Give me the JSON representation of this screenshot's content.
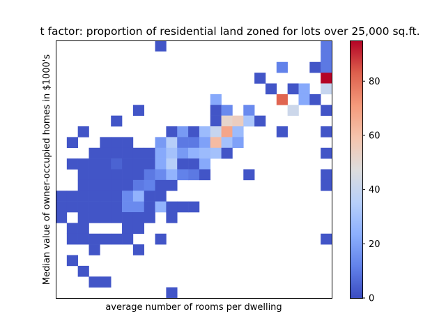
{
  "chart_data": {
    "type": "heatmap",
    "title": "t factor: proportion of residential land zoned for lots over 25,000 sq.ft.",
    "xlabel": "average number of rooms per dwelling",
    "ylabel": "Median value of owner-occupied homes in $1000's",
    "colormap": "coolwarm",
    "vmin": 0,
    "vmax": 95,
    "nx": 25,
    "ny": 24,
    "colorbar_ticks": [
      0,
      20,
      40,
      60,
      80
    ],
    "grid": false,
    "legend": "colorbar-right",
    "cells": [
      [
        9,
        23,
        2
      ],
      [
        24,
        23,
        10
      ],
      [
        24,
        22,
        10
      ],
      [
        20,
        21,
        12
      ],
      [
        23,
        21,
        2
      ],
      [
        24,
        21,
        10
      ],
      [
        18,
        20,
        2
      ],
      [
        24,
        20,
        95
      ],
      [
        19,
        19,
        2
      ],
      [
        21,
        19,
        2
      ],
      [
        22,
        19,
        22
      ],
      [
        24,
        19,
        40
      ],
      [
        14,
        18,
        22
      ],
      [
        20,
        18,
        82
      ],
      [
        22,
        18,
        22
      ],
      [
        23,
        18,
        2
      ],
      [
        7,
        17,
        2
      ],
      [
        14,
        17,
        2
      ],
      [
        15,
        17,
        14
      ],
      [
        17,
        17,
        14
      ],
      [
        21,
        17,
        42
      ],
      [
        24,
        17,
        2
      ],
      [
        5,
        16,
        2
      ],
      [
        14,
        16,
        2
      ],
      [
        15,
        16,
        52
      ],
      [
        16,
        16,
        55
      ],
      [
        17,
        16,
        32
      ],
      [
        18,
        16,
        2
      ],
      [
        2,
        15,
        2
      ],
      [
        10,
        15,
        2
      ],
      [
        11,
        15,
        18
      ],
      [
        12,
        15,
        2
      ],
      [
        13,
        15,
        28
      ],
      [
        14,
        15,
        40
      ],
      [
        15,
        15,
        68
      ],
      [
        16,
        15,
        28
      ],
      [
        20,
        15,
        2
      ],
      [
        24,
        15,
        2
      ],
      [
        1,
        14,
        2
      ],
      [
        4,
        14,
        2
      ],
      [
        5,
        14,
        2
      ],
      [
        6,
        14,
        2
      ],
      [
        9,
        14,
        18
      ],
      [
        10,
        14,
        35
      ],
      [
        11,
        14,
        10
      ],
      [
        12,
        14,
        10
      ],
      [
        13,
        14,
        20
      ],
      [
        14,
        14,
        62
      ],
      [
        15,
        14,
        30
      ],
      [
        16,
        14,
        20
      ],
      [
        3,
        13,
        2
      ],
      [
        4,
        13,
        2
      ],
      [
        5,
        13,
        2
      ],
      [
        6,
        13,
        2
      ],
      [
        7,
        13,
        2
      ],
      [
        8,
        13,
        2
      ],
      [
        9,
        13,
        22
      ],
      [
        10,
        13,
        30
      ],
      [
        11,
        13,
        18
      ],
      [
        12,
        13,
        25
      ],
      [
        13,
        13,
        28
      ],
      [
        14,
        13,
        30
      ],
      [
        15,
        13,
        2
      ],
      [
        24,
        13,
        2
      ],
      [
        1,
        12,
        2
      ],
      [
        2,
        12,
        2
      ],
      [
        3,
        12,
        2
      ],
      [
        4,
        12,
        2
      ],
      [
        5,
        12,
        5
      ],
      [
        6,
        12,
        2
      ],
      [
        7,
        12,
        2
      ],
      [
        8,
        12,
        2
      ],
      [
        9,
        12,
        22
      ],
      [
        10,
        12,
        35
      ],
      [
        11,
        12,
        2
      ],
      [
        12,
        12,
        2
      ],
      [
        13,
        12,
        22
      ],
      [
        2,
        11,
        2
      ],
      [
        3,
        11,
        2
      ],
      [
        4,
        11,
        2
      ],
      [
        5,
        11,
        2
      ],
      [
        6,
        11,
        2
      ],
      [
        7,
        11,
        2
      ],
      [
        8,
        11,
        10
      ],
      [
        9,
        11,
        14
      ],
      [
        10,
        11,
        25
      ],
      [
        11,
        11,
        12
      ],
      [
        12,
        11,
        10
      ],
      [
        13,
        11,
        2
      ],
      [
        17,
        11,
        2
      ],
      [
        24,
        11,
        2
      ],
      [
        2,
        10,
        2
      ],
      [
        3,
        10,
        2
      ],
      [
        4,
        10,
        2
      ],
      [
        5,
        10,
        2
      ],
      [
        6,
        10,
        2
      ],
      [
        7,
        10,
        10
      ],
      [
        8,
        10,
        12
      ],
      [
        9,
        10,
        2
      ],
      [
        10,
        10,
        2
      ],
      [
        24,
        10,
        2
      ],
      [
        0,
        9,
        2
      ],
      [
        1,
        9,
        2
      ],
      [
        2,
        9,
        2
      ],
      [
        3,
        9,
        2
      ],
      [
        4,
        9,
        2
      ],
      [
        5,
        9,
        2
      ],
      [
        6,
        9,
        14
      ],
      [
        7,
        9,
        25
      ],
      [
        8,
        9,
        2
      ],
      [
        9,
        9,
        2
      ],
      [
        0,
        8,
        2
      ],
      [
        1,
        8,
        2
      ],
      [
        2,
        8,
        2
      ],
      [
        3,
        8,
        2
      ],
      [
        4,
        8,
        2
      ],
      [
        5,
        8,
        2
      ],
      [
        6,
        8,
        14
      ],
      [
        7,
        8,
        14
      ],
      [
        8,
        8,
        2
      ],
      [
        9,
        8,
        25
      ],
      [
        10,
        8,
        2
      ],
      [
        11,
        8,
        2
      ],
      [
        12,
        8,
        2
      ],
      [
        0,
        7,
        2
      ],
      [
        2,
        7,
        2
      ],
      [
        3,
        7,
        2
      ],
      [
        4,
        7,
        2
      ],
      [
        5,
        7,
        2
      ],
      [
        6,
        7,
        2
      ],
      [
        7,
        7,
        2
      ],
      [
        8,
        7,
        2
      ],
      [
        10,
        7,
        2
      ],
      [
        1,
        6,
        2
      ],
      [
        2,
        6,
        2
      ],
      [
        6,
        6,
        2
      ],
      [
        7,
        6,
        2
      ],
      [
        1,
        5,
        2
      ],
      [
        2,
        5,
        2
      ],
      [
        3,
        5,
        2
      ],
      [
        4,
        5,
        2
      ],
      [
        5,
        5,
        2
      ],
      [
        6,
        5,
        2
      ],
      [
        9,
        5,
        2
      ],
      [
        24,
        5,
        2
      ],
      [
        3,
        4,
        2
      ],
      [
        7,
        4,
        2
      ],
      [
        1,
        3,
        2
      ],
      [
        2,
        2,
        2
      ],
      [
        3,
        1,
        2
      ],
      [
        4,
        1,
        2
      ],
      [
        10,
        0,
        2
      ],
      [
        12,
        -1,
        2
      ]
    ]
  }
}
